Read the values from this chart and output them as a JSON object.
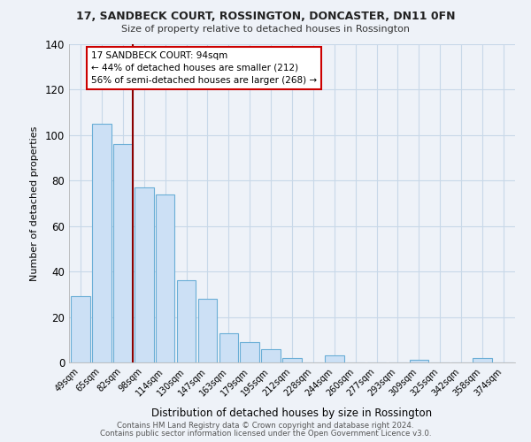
{
  "title": "17, SANDBECK COURT, ROSSINGTON, DONCASTER, DN11 0FN",
  "subtitle": "Size of property relative to detached houses in Rossington",
  "xlabel": "Distribution of detached houses by size in Rossington",
  "ylabel": "Number of detached properties",
  "footnote1": "Contains HM Land Registry data © Crown copyright and database right 2024.",
  "footnote2": "Contains public sector information licensed under the Open Government Licence v3.0.",
  "categories": [
    "49sqm",
    "65sqm",
    "82sqm",
    "98sqm",
    "114sqm",
    "130sqm",
    "147sqm",
    "163sqm",
    "179sqm",
    "195sqm",
    "212sqm",
    "228sqm",
    "244sqm",
    "260sqm",
    "277sqm",
    "293sqm",
    "309sqm",
    "325sqm",
    "342sqm",
    "358sqm",
    "374sqm"
  ],
  "values": [
    29,
    105,
    96,
    77,
    74,
    36,
    28,
    13,
    9,
    6,
    2,
    0,
    3,
    0,
    0,
    0,
    1,
    0,
    0,
    2,
    0
  ],
  "bar_color": "#cce0f5",
  "bar_edge_color": "#6aaed6",
  "property_line_color": "#8b0000",
  "annotation_title": "17 SANDBECK COURT: 94sqm",
  "annotation_line1": "← 44% of detached houses are smaller (212)",
  "annotation_line2": "56% of semi-detached houses are larger (268) →",
  "annotation_box_facecolor": "#ffffff",
  "annotation_box_edgecolor": "#cc0000",
  "ylim": [
    0,
    140
  ],
  "yticks": [
    0,
    20,
    40,
    60,
    80,
    100,
    120,
    140
  ],
  "grid_color": "#c8d8e8",
  "background_color": "#eef2f8"
}
